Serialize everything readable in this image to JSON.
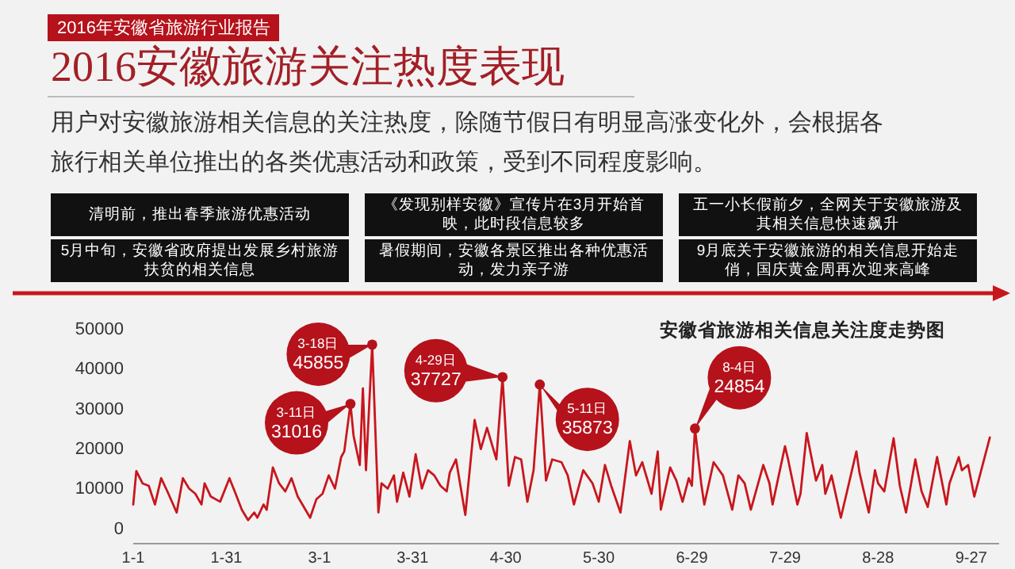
{
  "chart_data": {
    "type": "line",
    "title": "2016安徽旅游关注热度表现",
    "subtitle": "用户对安徽旅游相关信息的关注热度，除随节假日有明显高涨变化外，会根据各旅行相关单位推出的各类优惠活动和政策，受到不同程度影响。",
    "annotations": [
      "2016年安徽省旅游行业报告",
      "清明前，推出春季旅游优惠活动",
      "《发现别样安徽》宣传片在3月开始首映，此时段信息较多",
      "五一小长假前夕，全网关于安徽旅游及其相关信息快速飙升",
      "5月中旬，安徽省政府提出发展乡村旅游扶贫的相关信息",
      "暑假期间，安徽各景区推出各种优惠活动，发力亲子游",
      "9月底关于安徽旅游的相关信息开始走俏，国庆黄金周再次迎来高峰",
      "安徽省旅游相关信息关注度走势图",
      {
        "text": "3-18日\n45855",
        "x": "--03-18",
        "y": 45855
      },
      {
        "text": "3-11日\n31016",
        "x": "--03-11",
        "y": 31016
      },
      {
        "text": "4-29日\n37727",
        "x": "--04-29",
        "y": 37727
      },
      {
        "text": "5-11日\n35873",
        "x": "--05-11",
        "y": 35873
      },
      {
        "text": "8-4日\n24854",
        "x": "--06-30",
        "y": 24854
      }
    ],
    "x": [
      "--01-01",
      "--01-02",
      "--01-04",
      "--01-06",
      "--01-08",
      "--01-10",
      "--01-12",
      "--01-15",
      "--01-17",
      "--01-19",
      "--01-21",
      "--01-23",
      "--01-24",
      "--01-26",
      "--01-29",
      "--02-01",
      "--02-03",
      "--02-05",
      "--02-07",
      "--02-09",
      "--02-10",
      "--02-12",
      "--02-13",
      "--02-15",
      "--02-17",
      "--02-19",
      "--02-21",
      "--02-23",
      "--02-27",
      "--02-29",
      "--03-02",
      "--03-04",
      "--03-06",
      "--03-08",
      "--03-09",
      "--03-11",
      "--03-12",
      "--03-14",
      "--03-15",
      "--03-16",
      "--03-18",
      "--03-20",
      "--03-21",
      "--03-23",
      "--03-25",
      "--03-26",
      "--03-28",
      "--03-30",
      "--04-01",
      "--04-03",
      "--04-05",
      "--04-07",
      "--04-09",
      "--04-11",
      "--04-12",
      "--04-14",
      "--04-17",
      "--04-20",
      "--04-22",
      "--04-24",
      "--04-27",
      "--04-29",
      "--05-01",
      "--05-03",
      "--05-05",
      "--05-07",
      "--05-09",
      "--05-11",
      "--05-13",
      "--05-15",
      "--05-18",
      "--05-20",
      "--05-22",
      "--05-25",
      "--05-28",
      "--05-30",
      "--06-01",
      "--06-03",
      "--06-06",
      "--06-09",
      "--06-11",
      "--06-13",
      "--06-16",
      "--06-18",
      "--06-19",
      "--06-22",
      "--06-24",
      "--06-26",
      "--06-28",
      "--06-29",
      "--06-30",
      "--07-02",
      "--07-03",
      "--07-06",
      "--07-09",
      "--07-12",
      "--07-14",
      "--07-16",
      "--07-18",
      "--07-22",
      "--07-24",
      "--07-25",
      "--07-29",
      "--07-30",
      "--08-02",
      "--08-03",
      "--08-05",
      "--08-08",
      "--08-10",
      "--08-11",
      "--08-13",
      "--08-16",
      "--08-18",
      "--08-21",
      "--08-22",
      "--08-25",
      "--08-27",
      "--08-28",
      "--08-30",
      "--09-02",
      "--09-04",
      "--09-06",
      "--09-09",
      "--09-11",
      "--09-13",
      "--09-16",
      "--09-19",
      "--09-20",
      "--09-23",
      "--09-24",
      "--09-26",
      "--09-28",
      "--10-03"
    ],
    "series": [
      {
        "color": "#c8161d",
        "values": [
          5800,
          14200,
          11100,
          10500,
          5800,
          12400,
          9100,
          3800,
          12400,
          9800,
          8500,
          5800,
          11100,
          7800,
          6500,
          12400,
          8500,
          4500,
          1900,
          3800,
          2500,
          5800,
          4500,
          15100,
          11100,
          9100,
          12400,
          7800,
          2500,
          7100,
          8500,
          13100,
          9800,
          17700,
          19100,
          31016,
          23000,
          15700,
          34900,
          14400,
          45855,
          3800,
          11100,
          9800,
          13100,
          6500,
          13800,
          7800,
          18400,
          9800,
          14400,
          13100,
          10500,
          9100,
          13800,
          17100,
          3200,
          27000,
          19700,
          25000,
          17100,
          37727,
          10500,
          17700,
          17100,
          6500,
          14400,
          35873,
          11800,
          17100,
          16400,
          13100,
          5800,
          14400,
          11100,
          6500,
          15700,
          10500,
          3800,
          21700,
          13100,
          16400,
          8500,
          19100,
          4500,
          15100,
          11800,
          6500,
          12400,
          10500,
          24854,
          11100,
          5800,
          16400,
          13100,
          4500,
          13100,
          11100,
          4500,
          15700,
          11100,
          5800,
          20400,
          17100,
          5800,
          8500,
          23700,
          11800,
          15700,
          8500,
          13100,
          2500,
          9100,
          19100,
          13800,
          3800,
          14400,
          11100,
          9100,
          22400,
          10500,
          3800,
          17100,
          9100,
          5200,
          17700,
          5800,
          11100,
          17700,
          14400,
          15700,
          7800,
          22600
        ]
      }
    ],
    "xlim": [
      "--01-01",
      "--10-06"
    ],
    "xticks": [
      {
        "value": "--01-01",
        "label": "1-1"
      },
      {
        "value": "--01-31",
        "label": "1-31"
      },
      {
        "value": "--03-01",
        "label": "3-1"
      },
      {
        "value": "--03-31",
        "label": "3-31"
      },
      {
        "value": "--04-30",
        "label": "4-30"
      },
      {
        "value": "--05-30",
        "label": "5-30"
      },
      {
        "value": "--06-29",
        "label": "6-29"
      },
      {
        "value": "--07-29",
        "label": "7-29"
      },
      {
        "value": "--08-28",
        "label": "8-28"
      },
      {
        "value": "--09-27",
        "label": "9-27"
      }
    ],
    "ylim": [
      -4000,
      50000
    ],
    "yticks": [
      0,
      10000,
      20000,
      30000,
      40000,
      50000
    ],
    "grid": false,
    "marker": "none"
  }
}
